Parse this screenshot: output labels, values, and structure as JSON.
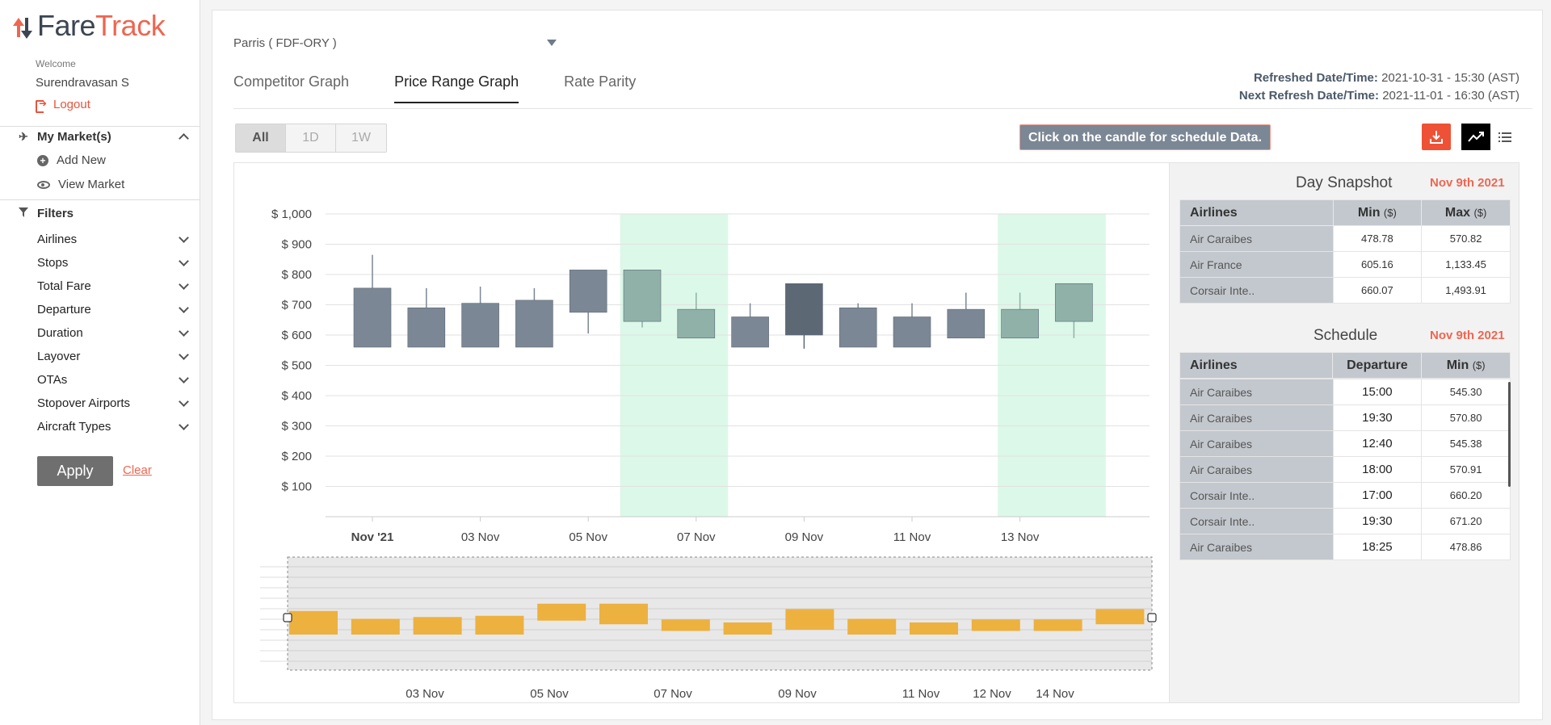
{
  "brand": {
    "part1": "Fare",
    "part2": "Track"
  },
  "user": {
    "welcome": "Welcome",
    "name": "Surendravasan S",
    "logout": "Logout"
  },
  "sidebar": {
    "markets": {
      "title": "My Market(s)",
      "add_new": "Add New",
      "view_market": "View Market"
    },
    "filters": {
      "title": "Filters",
      "items": [
        "Airlines",
        "Stops",
        "Total Fare",
        "Departure",
        "Duration",
        "Layover",
        "OTAs",
        "Stopover Airports",
        "Aircraft Types"
      ]
    },
    "apply": "Apply",
    "clear": "Clear"
  },
  "route": {
    "selected": "Parris ( FDF-ORY )"
  },
  "tabs": [
    "Competitor Graph",
    "Price Range Graph",
    "Rate Parity"
  ],
  "active_tab": "Price Range Graph",
  "refresh": {
    "refreshed_label": "Refreshed Date/Time:",
    "refreshed_value": "2021-10-31 - 15:30 (AST)",
    "next_label": "Next Refresh Date/Time:",
    "next_value": "2021-11-01 - 16:30 (AST)"
  },
  "range_buttons": [
    "All",
    "1D",
    "1W"
  ],
  "active_range": "All",
  "hint": "Click on the candle for schedule Data.",
  "colors": {
    "accent": "#ee5136",
    "candle": "#7b8794",
    "candle_dark": "#5d6875",
    "candle_highlight": "#8fb1a8",
    "highlight_band": "#dcf8e8",
    "navigator_bar": "#edb13f"
  },
  "chart_data": {
    "type": "candlestick",
    "y_labels": [
      "$ 1,000",
      "$ 900",
      "$ 800",
      "$ 700",
      "$ 600",
      "$ 500",
      "$ 400",
      "$ 300",
      "$ 200",
      "$ 100"
    ],
    "ylim": [
      0,
      1000
    ],
    "x_labels": [
      "Nov '21",
      "03 Nov",
      "05 Nov",
      "07 Nov",
      "09 Nov",
      "11 Nov",
      "13 Nov"
    ],
    "candles": [
      {
        "date": "2021-11-01",
        "open": 560,
        "high": 865,
        "low": 560,
        "close": 755
      },
      {
        "date": "2021-11-02",
        "open": 560,
        "high": 755,
        "low": 560,
        "close": 690
      },
      {
        "date": "2021-11-03",
        "open": 560,
        "high": 760,
        "low": 560,
        "close": 705
      },
      {
        "date": "2021-11-04",
        "open": 560,
        "high": 755,
        "low": 560,
        "close": 715
      },
      {
        "date": "2021-11-05",
        "open": 675,
        "high": 815,
        "low": 605,
        "close": 815
      },
      {
        "date": "2021-11-06",
        "open": 645,
        "high": 815,
        "low": 625,
        "close": 815
      },
      {
        "date": "2021-11-07",
        "open": 590,
        "high": 740,
        "low": 590,
        "close": 685
      },
      {
        "date": "2021-11-08",
        "open": 560,
        "high": 705,
        "low": 560,
        "close": 660
      },
      {
        "date": "2021-11-09",
        "open": 600,
        "high": 770,
        "low": 555,
        "close": 770
      },
      {
        "date": "2021-11-10",
        "open": 560,
        "high": 705,
        "low": 560,
        "close": 690
      },
      {
        "date": "2021-11-11",
        "open": 560,
        "high": 705,
        "low": 560,
        "close": 660
      },
      {
        "date": "2021-11-12",
        "open": 590,
        "high": 740,
        "low": 590,
        "close": 685
      },
      {
        "date": "2021-11-13",
        "open": 590,
        "high": 740,
        "low": 590,
        "close": 685
      },
      {
        "date": "2021-11-14",
        "open": 645,
        "high": 770,
        "low": 590,
        "close": 770
      }
    ],
    "highlighted_dates": [
      "2021-11-06",
      "2021-11-07",
      "2021-11-13",
      "2021-11-14"
    ],
    "navigator": {
      "x_labels": [
        "03 Nov",
        "05 Nov",
        "07 Nov",
        "09 Nov",
        "11 Nov",
        "12 Nov",
        "14 Nov"
      ]
    }
  },
  "day_snapshot": {
    "title": "Day Snapshot",
    "date": "Nov 9th 2021",
    "headers": [
      "Airlines",
      "Min",
      "Max"
    ],
    "unit": "($)",
    "rows": [
      {
        "airline": "Air Caraibes",
        "min": "478.78",
        "max": "570.82"
      },
      {
        "airline": "Air France",
        "min": "605.16",
        "max": "1,133.45"
      },
      {
        "airline": "Corsair Inte..",
        "min": "660.07",
        "max": "1,493.91"
      }
    ]
  },
  "schedule": {
    "title": "Schedule",
    "date": "Nov 9th 2021",
    "headers": [
      "Airlines",
      "Departure",
      "Min"
    ],
    "unit": "($)",
    "rows": [
      {
        "airline": "Air Caraibes",
        "departure": "15:00",
        "min": "545.30"
      },
      {
        "airline": "Air Caraibes",
        "departure": "19:30",
        "min": "570.80"
      },
      {
        "airline": "Air Caraibes",
        "departure": "12:40",
        "min": "545.38"
      },
      {
        "airline": "Air Caraibes",
        "departure": "18:00",
        "min": "570.91"
      },
      {
        "airline": "Corsair Inte..",
        "departure": "17:00",
        "min": "660.20"
      },
      {
        "airline": "Corsair Inte..",
        "departure": "19:30",
        "min": "671.20"
      },
      {
        "airline": "Air Caraibes",
        "departure": "18:25",
        "min": "478.86"
      }
    ]
  }
}
